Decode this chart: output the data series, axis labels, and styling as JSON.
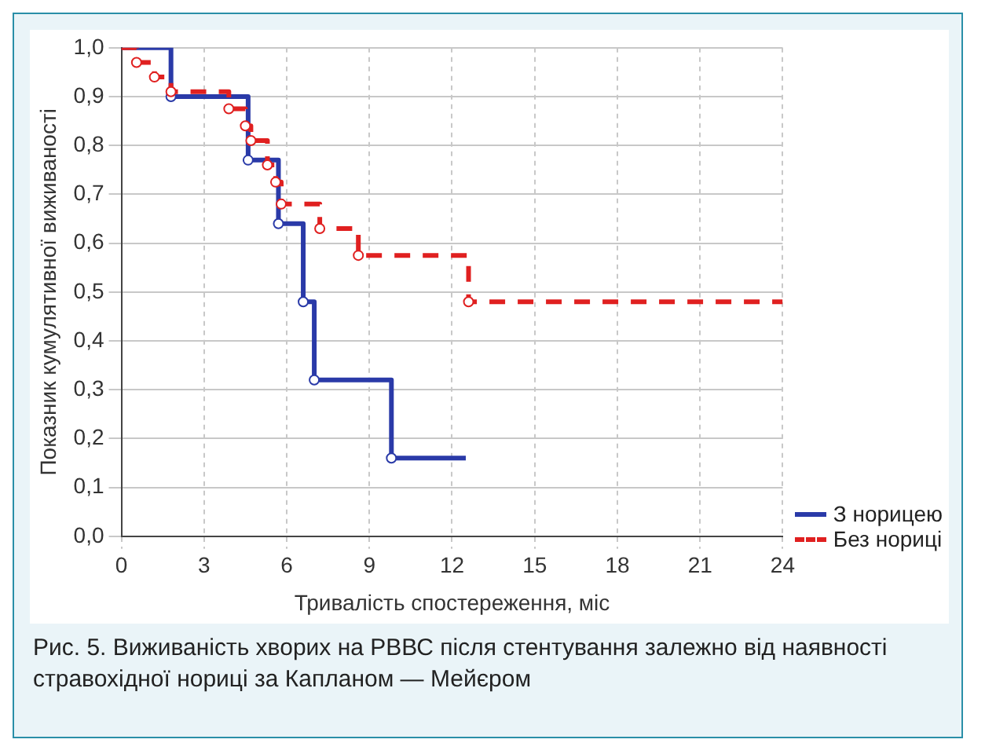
{
  "chart_data": {
    "type": "step",
    "xlabel": "Тривалість спостереження, міс",
    "ylabel": "Показник кумулятивної виживаності",
    "xlim": [
      0,
      24
    ],
    "xticks": [
      0,
      3,
      6,
      9,
      12,
      15,
      18,
      21,
      24
    ],
    "ylim": [
      0,
      1
    ],
    "yticks": [
      {
        "value": 0,
        "label": "0,0"
      },
      {
        "value": 0.1,
        "label": "0,1"
      },
      {
        "value": 0.2,
        "label": "0,2"
      },
      {
        "value": 0.3,
        "label": "0,3"
      },
      {
        "value": 0.4,
        "label": "0,4"
      },
      {
        "value": 0.5,
        "label": "0,5"
      },
      {
        "value": 0.6,
        "label": "0,6"
      },
      {
        "value": 0.7,
        "label": "0,7"
      },
      {
        "value": 0.8,
        "label": "0,8"
      },
      {
        "value": 0.9,
        "label": "0,9"
      },
      {
        "value": 1,
        "label": "1,0"
      }
    ],
    "grid": true,
    "legend": "bottom right",
    "marker": "circle",
    "series": [
      {
        "name": "З норицею",
        "color": "#2a3aa8",
        "line_style": "solid",
        "x": [
          0,
          1.8,
          4.6,
          5.7,
          6.6,
          7.0,
          9.8,
          12.5
        ],
        "values": [
          1.0,
          0.9,
          0.77,
          0.64,
          0.48,
          0.32,
          0.16,
          0.16
        ]
      },
      {
        "name": "Без нориці",
        "color": "#e02020",
        "line_style": "dashed",
        "x": [
          0,
          0.55,
          1.2,
          1.8,
          3.9,
          4.5,
          4.7,
          5.3,
          5.6,
          5.8,
          7.2,
          8.6,
          12.6,
          24
        ],
        "values": [
          1.0,
          0.97,
          0.94,
          0.91,
          0.875,
          0.84,
          0.81,
          0.76,
          0.725,
          0.68,
          0.63,
          0.575,
          0.48,
          0.48
        ]
      }
    ],
    "annotations": [
      "Рис. 5. Виживаність хворих на РВВС після стентування залежно від наявності стравохідної нориці за Капланом — Мейєром"
    ]
  }
}
